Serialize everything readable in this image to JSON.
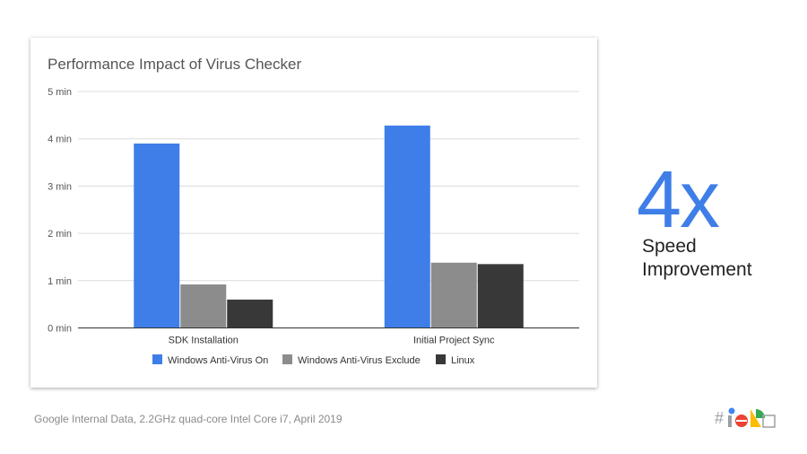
{
  "slide": {
    "callout_value": "4x",
    "callout_line1": "Speed",
    "callout_line2": "Improvement",
    "footnote": "Google Internal Data,  2.2GHz quad-core Intel Core i7, April 2019",
    "logo": {
      "icon": "google-io-logo",
      "hash": "#"
    }
  },
  "colors": {
    "series": [
      "#3f7ee8",
      "#8c8c8c",
      "#383838"
    ],
    "accent": "#3f7ee8"
  },
  "chart_data": {
    "type": "bar",
    "title": "Performance Impact of Virus Checker",
    "xlabel": "",
    "ylabel": "",
    "categories": [
      "SDK Installation",
      "Initial Project Sync"
    ],
    "series": [
      {
        "name": "Windows Anti-Virus On",
        "values": [
          3.9,
          4.28
        ]
      },
      {
        "name": "Windows Anti-Virus Exclude",
        "values": [
          0.92,
          1.38
        ]
      },
      {
        "name": "Linux",
        "values": [
          0.6,
          1.35
        ]
      }
    ],
    "ylim": [
      0,
      5
    ],
    "yticks": [
      0,
      1,
      2,
      3,
      4,
      5
    ],
    "ytick_labels": [
      "0 min",
      "1 min",
      "2 min",
      "3 min",
      "4 min",
      "5 min"
    ],
    "grid": true,
    "legend_position": "bottom"
  }
}
